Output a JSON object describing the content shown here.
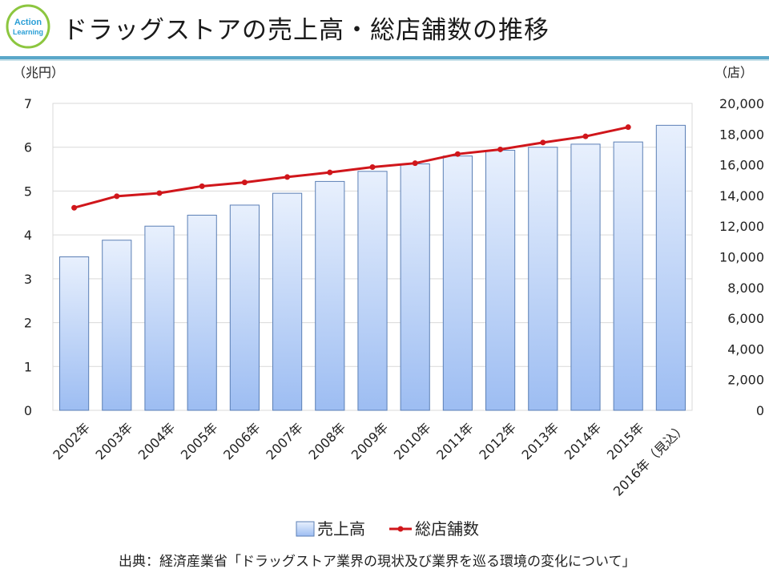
{
  "header": {
    "logo_line1": "Action",
    "logo_line2": "Learning",
    "title": "ドラッグストアの売上高・総店舗数の推移"
  },
  "colors": {
    "bar_top": "#e8f0fd",
    "bar_bottom": "#9dbdf2",
    "bar_stroke": "#5b7fb5",
    "line": "#d0161b",
    "grid": "#d9d9d9",
    "accent_rule": "#5aa7c9"
  },
  "chart_data": {
    "type": "bar+line",
    "categories": [
      "2002年",
      "2003年",
      "2004年",
      "2005年",
      "2006年",
      "2007年",
      "2008年",
      "2009年",
      "2010年",
      "2011年",
      "2012年",
      "2013年",
      "2014年",
      "2015年",
      "2016年（見込）"
    ],
    "series": [
      {
        "name": "売上高",
        "type": "bar",
        "axis": "left",
        "values": [
          3.5,
          3.88,
          4.2,
          4.45,
          4.68,
          4.95,
          5.22,
          5.45,
          5.62,
          5.8,
          5.93,
          6.0,
          6.07,
          6.12,
          6.5
        ]
      },
      {
        "name": "総店舗数",
        "type": "line",
        "axis": "right",
        "values": [
          13200,
          13950,
          14150,
          14600,
          14850,
          15200,
          15500,
          15850,
          16100,
          16700,
          17000,
          17450,
          17850,
          18450,
          null
        ]
      }
    ],
    "y_left": {
      "label": "（兆円）",
      "min": 0,
      "max": 7,
      "ticks": [
        "0",
        "1",
        "2",
        "3",
        "4",
        "5",
        "6",
        "7"
      ]
    },
    "y_right": {
      "label": "（店）",
      "min": 0,
      "max": 20000,
      "ticks": [
        "0",
        "2,000",
        "4,000",
        "6,000",
        "8,000",
        "10,000",
        "12,000",
        "14,000",
        "16,000",
        "18,000",
        "20,000"
      ]
    },
    "legend": [
      "売上高",
      "総店舗数"
    ],
    "legend_position": "bottom",
    "grid": true
  },
  "footer": {
    "source": "出典：経済産業省「ドラッグストア業界の現状及び業界を巡る環境の変化について」"
  }
}
